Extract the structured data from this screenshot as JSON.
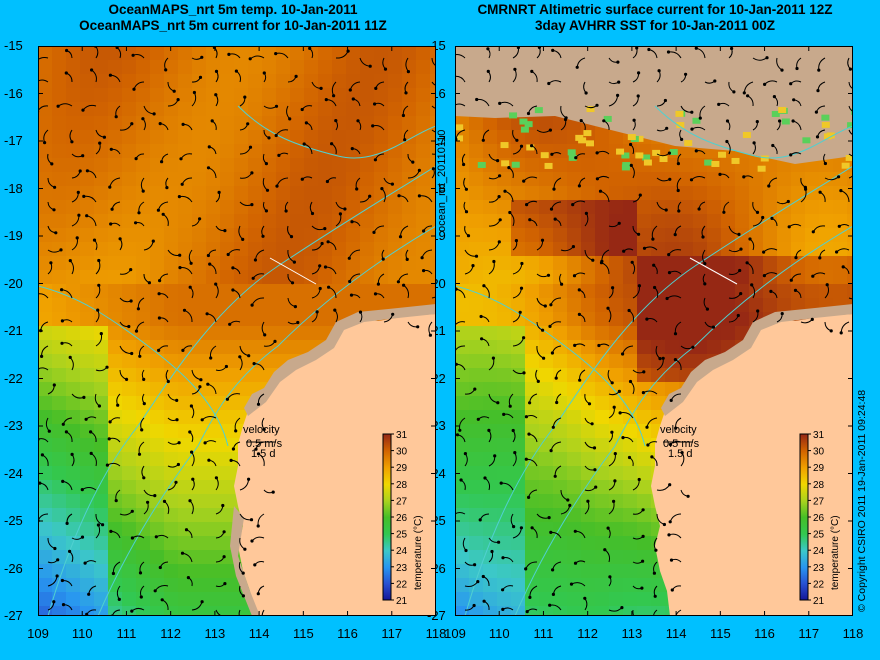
{
  "left_panel": {
    "title_line1": "OceanMAPS_nrt 5m temp. 10-Jan-2011",
    "title_line2": "OceanMAPS_nrt 5m current for 10-Jan-2011 11Z",
    "velocity_label": "velocity",
    "speed_label": "0.5 m/s",
    "time_label": "1.5 d",
    "colorbar_title": "temperature (°C)"
  },
  "right_panel": {
    "title_line1": "CMRNRT Altimetric surface current for 10-Jan-2011 12Z",
    "title_line2": "3day AVHRR SST for 10-Jan-2011 00Z",
    "velocity_label": "velocity",
    "speed_label": "0.5 m/s",
    "time_label": "1.5 d",
    "colorbar_title": "temperature (°C)"
  },
  "map": {
    "lon_range": [
      109,
      118
    ],
    "lat_range": [
      -27,
      -15
    ],
    "lon_ticks": [
      "109",
      "110",
      "111",
      "112",
      "113",
      "114",
      "115",
      "116",
      "117",
      "118"
    ],
    "lat_ticks": [
      "-15",
      "-16",
      "-17",
      "-18",
      "-19",
      "-20",
      "-21",
      "-22",
      "-23",
      "-24",
      "-25",
      "-26",
      "-27"
    ],
    "colorbar_ticks": [
      "31",
      "30",
      "29",
      "28",
      "27",
      "26",
      "25",
      "24",
      "23",
      "22",
      "21"
    ],
    "colorbar_range": [
      21,
      31
    ]
  },
  "run_label": "ocean_nrt_20110110",
  "copyright": "© Copyright CSIRO 2011   19-Jan-2011 09:24:48",
  "colors": {
    "background": "#00c0ff",
    "land": "#ffc89a",
    "land_mask": "#c8a98c",
    "bathymetry_contour": "#50d0d0",
    "vector": "#000000"
  }
}
